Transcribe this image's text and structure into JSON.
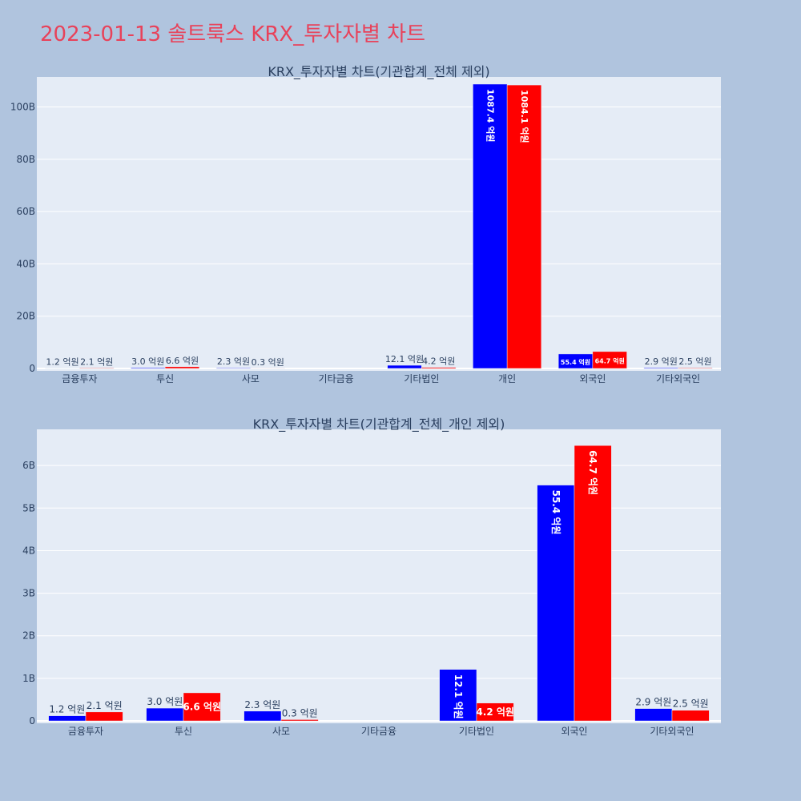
{
  "page": {
    "title": "2023-01-13 솔트룩스 KRX_투자자별 차트"
  },
  "colors": {
    "buy": "#0000ff",
    "sell": "#ff0000",
    "background": "#b0c4de",
    "plot_background": "#e5ecf6",
    "title": "#e8425a"
  },
  "chart_data": [
    {
      "type": "bar",
      "title": "KRX_투자자별 차트(기관합계_전체 제외)",
      "categories": [
        "금융투자",
        "투신",
        "사모",
        "기타금융",
        "기타법인",
        "개인",
        "외국인",
        "기타외국인"
      ],
      "series": [
        {
          "color": "#0000ff",
          "values": [
            0.12,
            0.3,
            0.23,
            0,
            1.21,
            108.74,
            5.54,
            0.29
          ],
          "labels": [
            "1.2 억원",
            "3.0 억원",
            "2.3 억원",
            "",
            "12.1 억원",
            "1087.4 억원",
            "55.4 억원",
            "2.9 억원"
          ]
        },
        {
          "color": "#ff0000",
          "values": [
            0.21,
            0.66,
            0.03,
            0,
            0.42,
            108.41,
            6.47,
            0.25
          ],
          "labels": [
            "2.1 억원",
            "6.6 억원",
            "0.3 억원",
            "",
            "4.2 억원",
            "1084.1 억원",
            "64.7 억원",
            "2.5 억원"
          ]
        }
      ],
      "yticks": [
        0,
        20,
        40,
        60,
        80,
        100
      ],
      "ytick_labels": [
        "0",
        "20B",
        "40B",
        "60B",
        "80B",
        "100B"
      ],
      "ylim": [
        0,
        111.5
      ],
      "grid": true,
      "legend": false
    },
    {
      "type": "bar",
      "title": "KRX_투자자별 차트(기관합계_전체_개인 제외)",
      "categories": [
        "금융투자",
        "투신",
        "사모",
        "기타금융",
        "기타법인",
        "외국인",
        "기타외국인"
      ],
      "series": [
        {
          "color": "#0000ff",
          "values": [
            0.12,
            0.3,
            0.23,
            0,
            1.21,
            5.54,
            0.29
          ],
          "labels": [
            "1.2 억원",
            "3.0 억원",
            "2.3 억원",
            "",
            "12.1 억원",
            "55.4 억원",
            "2.9 억원"
          ]
        },
        {
          "color": "#ff0000",
          "values": [
            0.21,
            0.66,
            0.03,
            0,
            0.42,
            6.47,
            0.25
          ],
          "labels": [
            "2.1 억원",
            "6.6 억원",
            "0.3 억원",
            "",
            "4.2 억원",
            "64.7 억원",
            "2.5 억원"
          ]
        }
      ],
      "yticks": [
        0,
        1,
        2,
        3,
        4,
        5,
        6
      ],
      "ytick_labels": [
        "0",
        "1B",
        "2B",
        "3B",
        "4B",
        "5B",
        "6B"
      ],
      "ylim": [
        0,
        6.85
      ],
      "grid": true,
      "legend": false
    }
  ]
}
